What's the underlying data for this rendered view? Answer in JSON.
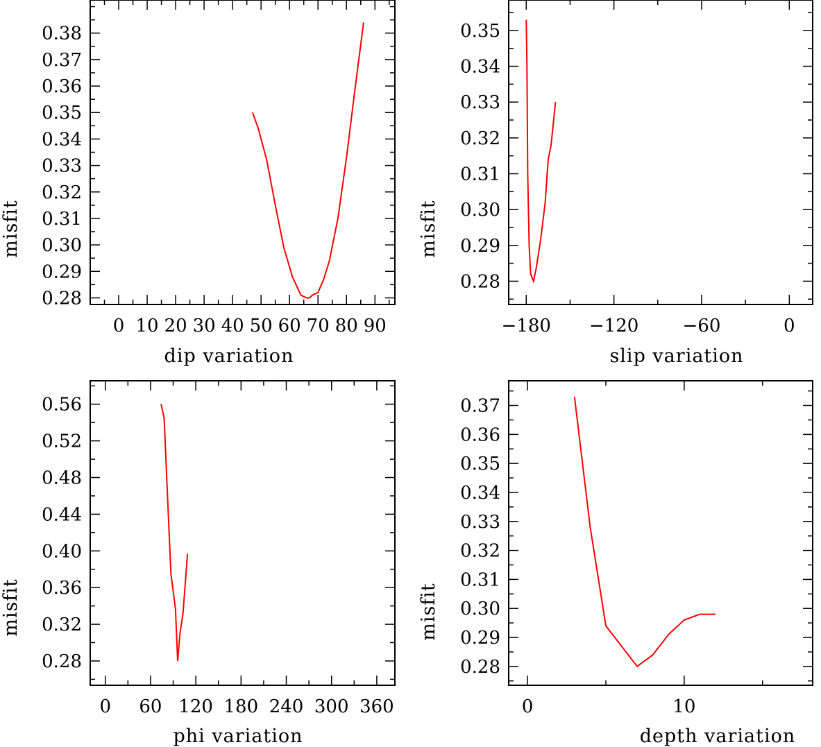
{
  "chart_data": [
    {
      "type": "line",
      "panel": "top-left",
      "xlabel": "dip     variation",
      "ylabel": "misfit",
      "xlim": [
        -10,
        97
      ],
      "ylim": [
        0.2775,
        0.3925
      ],
      "x_ticks": [
        0,
        10,
        20,
        30,
        40,
        50,
        60,
        70,
        80,
        90
      ],
      "x_tick_labels": [
        "0",
        "10",
        "20",
        "30",
        "40",
        "50",
        "60",
        "70",
        "80",
        "90"
      ],
      "y_ticks": [
        0.28,
        0.29,
        0.3,
        0.31,
        0.32,
        0.33,
        0.34,
        0.35,
        0.36,
        0.37,
        0.38
      ],
      "y_tick_labels": [
        "0.28",
        "0.29",
        "0.30",
        "0.31",
        "0.32",
        "0.33",
        "0.34",
        "0.35",
        "0.36",
        "0.37",
        "0.38"
      ],
      "series": [
        {
          "color": "#ff0000",
          "x": [
            47,
            49,
            52,
            55,
            58,
            61,
            64,
            66,
            67,
            68,
            70,
            72,
            74,
            77,
            80,
            83,
            86
          ],
          "y": [
            0.35,
            0.344,
            0.332,
            0.315,
            0.299,
            0.288,
            0.281,
            0.28,
            0.28,
            0.281,
            0.282,
            0.287,
            0.294,
            0.31,
            0.333,
            0.359,
            0.384
          ]
        }
      ]
    },
    {
      "type": "line",
      "panel": "top-right",
      "xlabel": "slip   variation",
      "ylabel": "misfit",
      "xlim": [
        -192,
        16
      ],
      "ylim": [
        0.2735,
        0.3585
      ],
      "x_ticks": [
        -180,
        -120,
        -60,
        0
      ],
      "x_tick_labels": [
        "−180",
        "−120",
        "−60",
        "0"
      ],
      "y_ticks": [
        0.28,
        0.29,
        0.3,
        0.31,
        0.32,
        0.33,
        0.34,
        0.35
      ],
      "y_tick_labels": [
        "0.28",
        "0.29",
        "0.30",
        "0.31",
        "0.32",
        "0.33",
        "0.34",
        "0.35"
      ],
      "series": [
        {
          "color": "#ff0000",
          "x": [
            -180,
            -179.5,
            -179,
            -178,
            -177,
            -175,
            -173,
            -170,
            -167,
            -165,
            -163,
            -160
          ],
          "y": [
            0.353,
            0.34,
            0.31,
            0.29,
            0.282,
            0.28,
            0.284,
            0.292,
            0.302,
            0.314,
            0.318,
            0.33
          ]
        }
      ]
    },
    {
      "type": "line",
      "panel": "bottom-left",
      "xlabel": "phi     variation",
      "ylabel": "misfit",
      "xlim": [
        -20,
        384
      ],
      "ylim": [
        0.2535,
        0.5855
      ],
      "x_ticks": [
        0,
        60,
        120,
        180,
        240,
        300,
        360
      ],
      "x_tick_labels": [
        "0",
        "60",
        "120",
        "180",
        "240",
        "300",
        "360"
      ],
      "y_ticks": [
        0.28,
        0.32,
        0.36,
        0.4,
        0.44,
        0.48,
        0.52,
        0.56
      ],
      "y_tick_labels": [
        "0.28",
        "0.32",
        "0.36",
        "0.40",
        "0.44",
        "0.48",
        "0.52",
        "0.56"
      ],
      "series": [
        {
          "color": "#ff0000",
          "x": [
            74,
            78,
            82,
            87,
            93,
            96,
            99,
            103,
            109
          ],
          "y": [
            0.56,
            0.545,
            0.47,
            0.375,
            0.337,
            0.28,
            0.31,
            0.332,
            0.397
          ]
        }
      ]
    },
    {
      "type": "line",
      "panel": "bottom-right",
      "xlabel": "depth   variation",
      "ylabel": "misfit",
      "xlim": [
        -1.2,
        18.2
      ],
      "ylim": [
        0.2735,
        0.3785
      ],
      "x_ticks": [
        0,
        10
      ],
      "x_tick_labels": [
        "0",
        "10"
      ],
      "y_ticks": [
        0.28,
        0.29,
        0.3,
        0.31,
        0.32,
        0.33,
        0.34,
        0.35,
        0.36,
        0.37
      ],
      "y_tick_labels": [
        "0.28",
        "0.29",
        "0.30",
        "0.31",
        "0.32",
        "0.33",
        "0.34",
        "0.35",
        "0.36",
        "0.37"
      ],
      "series": [
        {
          "color": "#ff0000",
          "x": [
            3,
            4,
            5,
            6,
            7,
            8,
            9,
            10,
            11,
            12
          ],
          "y": [
            0.373,
            0.328,
            0.294,
            0.287,
            0.28,
            0.284,
            0.291,
            0.296,
            0.298,
            0.298
          ]
        }
      ]
    }
  ]
}
